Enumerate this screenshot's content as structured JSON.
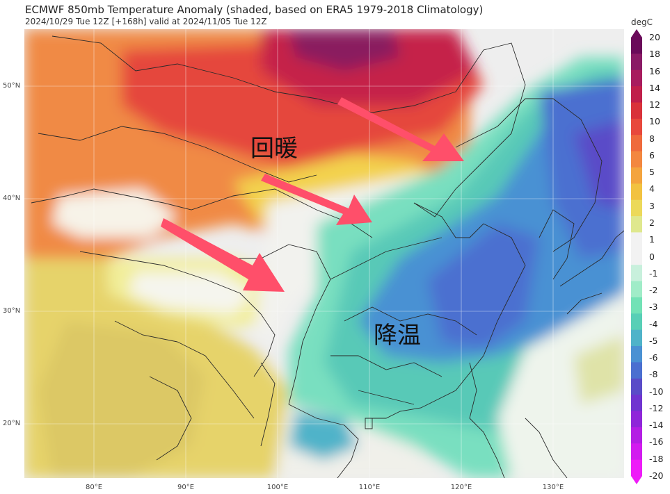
{
  "title": "ECMWF 850mb Temperature Anomaly (shaded, based on ERA5 1979-2018 Climatology)",
  "subtitle": "2024/10/29 Tue 12Z [+168h] valid at 2024/11/05 Tue 12Z",
  "colorbar": {
    "unit": "degC",
    "labels": [
      "20",
      "18",
      "16",
      "14",
      "12",
      "10",
      "8",
      "6",
      "5",
      "4",
      "3",
      "2",
      "1",
      "0",
      "-1",
      "-2",
      "-3",
      "-4",
      "-5",
      "-6",
      "-8",
      "-10",
      "-12",
      "-14",
      "-16",
      "-18",
      "-20"
    ],
    "colors": [
      "#6a0a5a",
      "#8a1a66",
      "#a81c5e",
      "#c01f4a",
      "#d9323a",
      "#e8483c",
      "#ef6a3c",
      "#f3873f",
      "#f4a43e",
      "#f2c240",
      "#ecd95a",
      "#dfe88e",
      "#f2f2f2",
      "#f2f2f2",
      "#c8f0dc",
      "#a0ecc8",
      "#72e2b6",
      "#58cfb6",
      "#4fb3c9",
      "#4a91d3",
      "#4b6fd0",
      "#5a4cc8",
      "#7034d0",
      "#8f26d9",
      "#b41ee4",
      "#d21bef",
      "#ee1cf8"
    ]
  },
  "lat_labels": [
    "50°N",
    "40°N",
    "30°N",
    "20°N"
  ],
  "lon_labels": [
    "80°E",
    "90°E",
    "100°E",
    "110°E",
    "120°E",
    "130°E"
  ],
  "annotations": {
    "warming": "回暖",
    "cooling": "降温"
  },
  "arrows": [
    {
      "name": "arrow-north",
      "color": "#ff4f6a"
    },
    {
      "name": "arrow-middle",
      "color": "#ff4f6a"
    },
    {
      "name": "arrow-west",
      "color": "#ff4f6a"
    }
  ]
}
